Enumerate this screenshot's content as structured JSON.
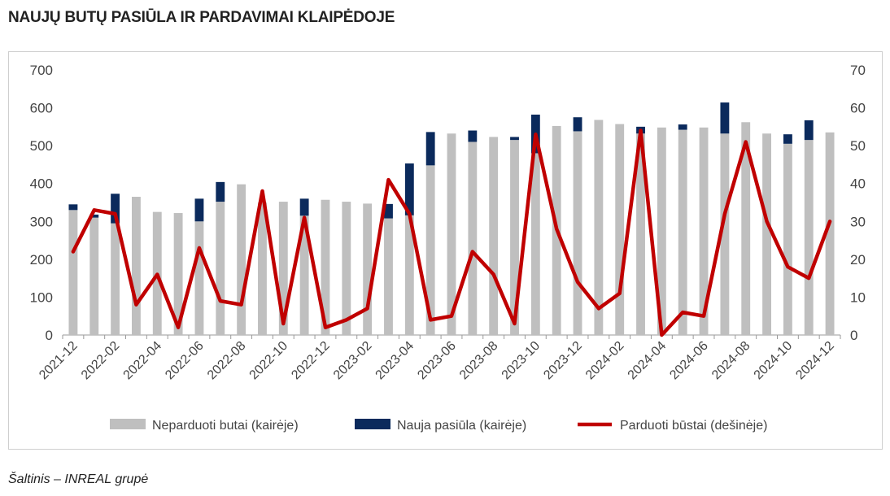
{
  "title": "NAUJŲ BUTŲ PASIŪLA IR PARDAVIMAI KLAIPĖDOJE",
  "source": "Šaltinis – INREAL grupė",
  "colors": {
    "unsold": "#bfbfbf",
    "new_supply": "#0b2a5c",
    "sold": "#c00000",
    "grid": "#d9d9d9"
  },
  "chart_data": {
    "type": "bar",
    "stacked": true,
    "x_tick_labels": [
      "2021-12",
      "2022-02",
      "2022-04",
      "2022-06",
      "2022-08",
      "2022-10",
      "2022-12",
      "2023-02",
      "2023-04",
      "2023-06",
      "2023-08",
      "2023-10",
      "2023-12",
      "2024-02",
      "2024-04",
      "2024-06",
      "2024-08",
      "2024-10",
      "2024-12"
    ],
    "categories": [
      "2021-12",
      "2022-01",
      "2022-02",
      "2022-03",
      "2022-04",
      "2022-05",
      "2022-06",
      "2022-07",
      "2022-08",
      "2022-09",
      "2022-10",
      "2022-11",
      "2022-12",
      "2023-01",
      "2023-02",
      "2023-03",
      "2023-04",
      "2023-05",
      "2023-06",
      "2023-07",
      "2023-08",
      "2023-09",
      "2023-10",
      "2023-11",
      "2023-12",
      "2024-01",
      "2024-02",
      "2024-03",
      "2024-04",
      "2024-05",
      "2024-06",
      "2024-07",
      "2024-08",
      "2024-09",
      "2024-10",
      "2024-11",
      "2024-12"
    ],
    "y_left": {
      "min": 0,
      "max": 700,
      "ticks": [
        0,
        100,
        200,
        300,
        400,
        500,
        600,
        700
      ]
    },
    "y_right": {
      "min": 0,
      "max": 70,
      "ticks": [
        0,
        10,
        20,
        30,
        40,
        50,
        60,
        70
      ]
    },
    "grid": false,
    "legend_position": "bottom",
    "series": [
      {
        "name": "Neparduoti butai (kairėje)",
        "type": "bar",
        "axis": "left",
        "values": [
          330,
          310,
          295,
          365,
          325,
          322,
          300,
          352,
          398,
          350,
          352,
          315,
          357,
          352,
          347,
          308,
          316,
          448,
          532,
          510,
          523,
          515,
          480,
          552,
          538,
          568,
          557,
          532,
          548,
          542,
          548,
          532,
          562,
          532,
          505,
          515,
          535
        ]
      },
      {
        "name": "Nauja pasiūla (kairėje)",
        "type": "bar",
        "axis": "left",
        "values": [
          15,
          8,
          78,
          0,
          0,
          0,
          60,
          52,
          0,
          0,
          0,
          45,
          0,
          0,
          0,
          38,
          137,
          88,
          0,
          30,
          0,
          8,
          102,
          0,
          37,
          0,
          0,
          18,
          0,
          14,
          0,
          82,
          0,
          0,
          25,
          52,
          0
        ]
      },
      {
        "name": "Parduoti būstai (dešinėje)",
        "type": "line",
        "axis": "right",
        "values": [
          22,
          33,
          32,
          8,
          16,
          2,
          23,
          9,
          8,
          38,
          3,
          31,
          2,
          4,
          7,
          41,
          32,
          4,
          5,
          22,
          16,
          3,
          53,
          28,
          14,
          7,
          11,
          54,
          0,
          6,
          5,
          32,
          51,
          30,
          18,
          15,
          30
        ]
      }
    ]
  }
}
